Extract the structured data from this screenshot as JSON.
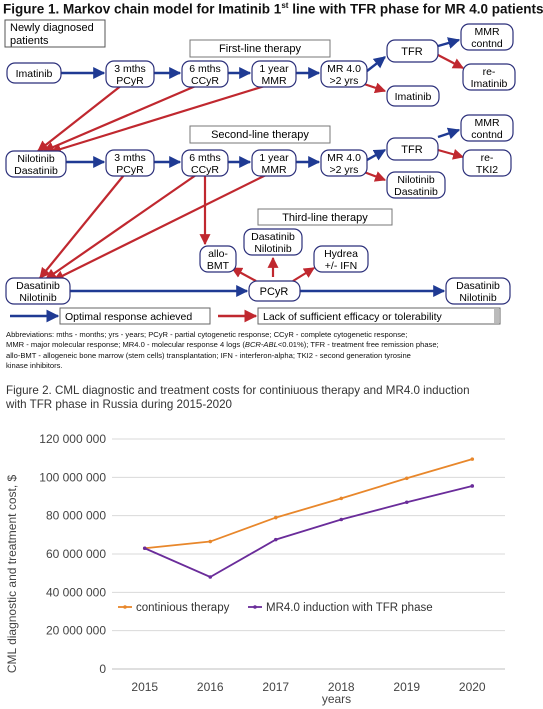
{
  "figure1": {
    "title_main": "Figure 1. Markov chain model for Imatinib 1",
    "title_sup": "st",
    "title_rest": " line with TFR phase for MR 4.0 patients",
    "newly_diagnosed_line1": "Newly diagnosed",
    "newly_diagnosed_line2": "patients",
    "first_line_label": "First-line therapy",
    "second_line_label": "Second-line therapy",
    "third_line_label": "Third-line therapy",
    "row1": {
      "imatinib": "Imatinib",
      "pcyr": [
        "3 mths",
        "PCyR"
      ],
      "ccyr": [
        "6 mths",
        "CCyR"
      ],
      "mmr": [
        "1 year",
        "MMR"
      ],
      "mr4": [
        "MR 4.0",
        ">2 yrs"
      ],
      "tfr": "TFR",
      "mmr_contnd": [
        "MMR",
        "contnd"
      ],
      "re_imatinib": [
        "re-",
        "Imatinib"
      ],
      "imatinib_out": "Imatinib"
    },
    "row2": {
      "start": [
        "Nilotinib",
        "Dasatinib"
      ],
      "pcyr": [
        "3 mths",
        "PCyR"
      ],
      "ccyr": [
        "6 mths",
        "CCyR"
      ],
      "mmr": [
        "1 year",
        "MMR"
      ],
      "mr4": [
        "MR 4.0",
        ">2 yrs"
      ],
      "tfr": "TFR",
      "mmr_contnd": [
        "MMR",
        "contnd"
      ],
      "re_tki2": [
        "re-",
        "TKI2"
      ],
      "out": [
        "Nilotinib",
        "Dasatinib"
      ]
    },
    "row3": {
      "allo_bmt": [
        "allo-",
        "BMT"
      ],
      "dasa_nilo": [
        "Dasatinib",
        "Nilotinib"
      ],
      "hydrea": [
        "Hydrea",
        "+/- IFN"
      ],
      "pcyr": "PCyR",
      "start": [
        "Dasatinib",
        "Nilotinib"
      ],
      "end": [
        "Dasatinib",
        "Nilotinib"
      ]
    },
    "legend_optimal": "Optimal response achieved",
    "legend_lack": "Lack of sufficient efficacy or tolerability",
    "abbreviations_1": "Abbreviations: mths - months; yrs - years; PCyR - partial cytogenetic response; CCyR - complete cytogenetic response;",
    "abbreviations_2a": "MMR - major molecular response; MR4.0 - molecular response 4 logs (",
    "abbreviations_2b": "BCR-ABL",
    "abbreviations_2c": "<0.01%); TFR - treatment free remission phase;",
    "abbreviations_3": "allo-BMT - allogeneic bone marrow (stem cells) transplantation; IFN - interferon-alpha; TKI2 - second generation tyrosine",
    "abbreviations_4": "kinase inhibitors.",
    "colors": {
      "blue": "#1f3a93",
      "red": "#c0282f",
      "box_border": "#2b2f7a"
    }
  },
  "figure2": {
    "title_line1": "Figure 2. CML  diagnostic and treatment costs for continiuous therapy and MR4.0 induction",
    "title_line2": "with TFR phase in Russia during 2015-2020"
  },
  "chart_data": {
    "type": "line",
    "x": [
      2015,
      2016,
      2017,
      2018,
      2019,
      2020
    ],
    "x_tick_labels": [
      "2015",
      "2016",
      "2017",
      "2018",
      "2019",
      "2020"
    ],
    "y_tick_labels": [
      "0",
      "20 000 000",
      "40 000 000",
      "60 000 000",
      "80 000 000",
      "100 000 000",
      "120 000 000"
    ],
    "ylim": [
      0,
      120000000
    ],
    "xlabel": "years",
    "ylabel": "CML diagnostic and treatment cost, $",
    "grid": "horizontal",
    "legend_position": "center",
    "series": [
      {
        "name": "continious therapy",
        "color": "#e8872b",
        "values": [
          63000000,
          66500000,
          79000000,
          89000000,
          99500000,
          109500000
        ]
      },
      {
        "name": "MR4.0 induction with TFR phase",
        "color": "#6a2c9a",
        "values": [
          63000000,
          48000000,
          67500000,
          78000000,
          87000000,
          95500000
        ]
      }
    ]
  }
}
